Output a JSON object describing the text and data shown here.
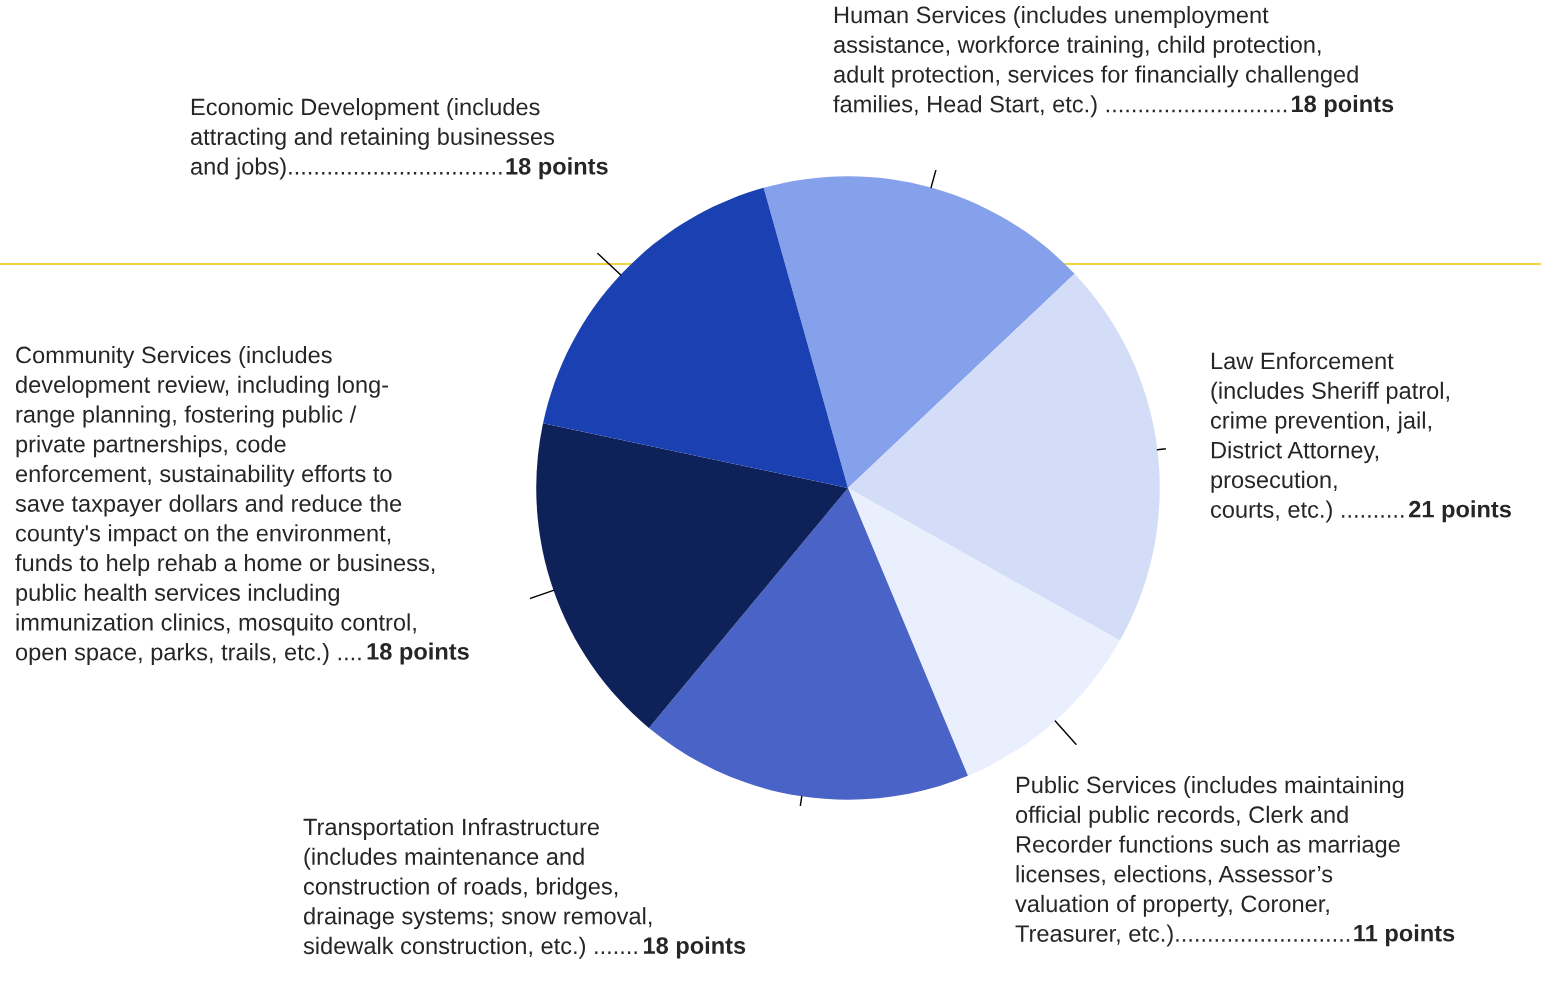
{
  "chart_data": {
    "type": "pie",
    "categories": [
      "Human Services (includes unemployment\nassistance, workforce training, child protection,\nadult protection, services for financially challenged\nfamilies, Head Start, etc.) ............................",
      "Law Enforcement\n(includes Sheriff patrol,\ncrime prevention, jail,\nDistrict Attorney,\nprosecution,\ncourts, etc.) ..........",
      "Public Services (includes maintaining\nofficial public records, Clerk and\nRecorder functions such as marriage\nlicenses, elections, Assessor’s\nvaluation of property, Coroner,\nTreasurer, etc.)...........................",
      "Transportation Infrastructure\n(includes maintenance and\nconstruction of roads, bridges,\ndrainage systems; snow removal,\nsidewalk construction, etc.) .......",
      "Community Services (includes\ndevelopment review, including long-\nrange planning, fostering public /\nprivate partnerships, code\nenforcement, sustainability efforts to\nsave taxpayer dollars and reduce the\ncounty's impact on the environment,\nfunds to help rehab a home or business,\npublic health services including\nimmunization clinics, mosquito control,\nopen space, parks, trails, etc.) ....",
      "Economic Development (includes\nattracting and retaining businesses\nand jobs)................................."
    ],
    "values": [
      18,
      21,
      11,
      18,
      18,
      18
    ],
    "colors": [
      "#86a1ec",
      "#d4ddf8",
      "#eaeffd",
      "#4a63c6",
      "#0e2158",
      "#1a40b1"
    ],
    "value_labels": [
      "18 points",
      "21 points",
      "11 points",
      "18 points",
      "18 points",
      "18 points"
    ]
  }
}
